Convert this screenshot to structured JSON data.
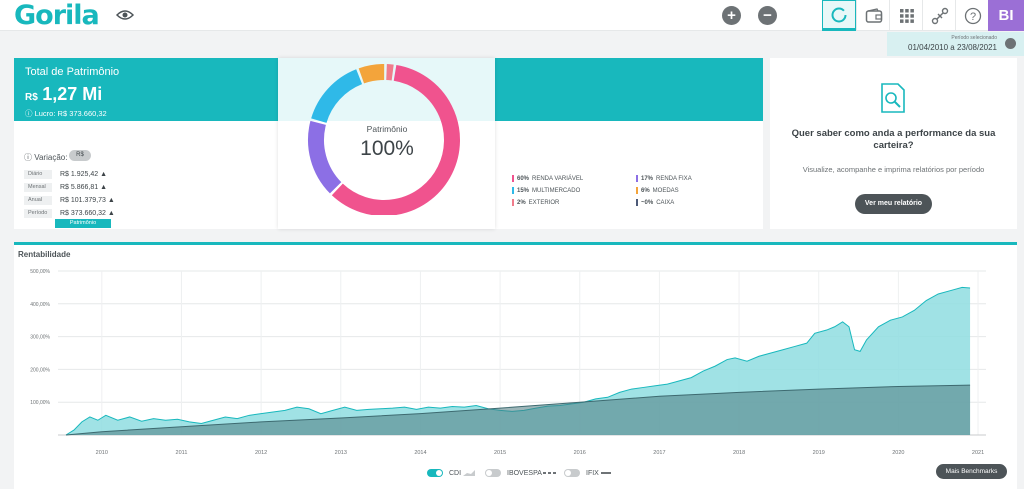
{
  "app": {
    "logo": "Gorila"
  },
  "topbar": {
    "add_label": "+",
    "remove_label": "−",
    "avatar_initials": "BI",
    "help_label": "?"
  },
  "period": {
    "label": "Período selecionado",
    "value": "01/04/2010 a 23/08/2021"
  },
  "patrimony": {
    "title": "Total de Patrimônio",
    "currency": "R$",
    "value": "1,27 Mi",
    "profit": "Lucro: R$ 373.660,32",
    "variation_label": "Variação:",
    "variation_toggle": "R$",
    "variations": [
      {
        "period": "Diário",
        "value": "R$ 1.925,42"
      },
      {
        "period": "Mensal",
        "value": "R$ 5.866,81"
      },
      {
        "period": "Anual",
        "value": "R$ 101.379,73"
      },
      {
        "period": "Período",
        "value": "R$ 373.660,32"
      }
    ],
    "variation_button": "Patrimônio",
    "donut_label": "Patrimônio",
    "donut_pct": "100%",
    "allocation": [
      {
        "pct": "60%",
        "label": "RENDA VARIÁVEL",
        "color": "#f0538e",
        "fraction": 0.6
      },
      {
        "pct": "17%",
        "label": "RENDA FIXA",
        "color": "#8c6fe5",
        "fraction": 0.17
      },
      {
        "pct": "15%",
        "label": "MULTIMERCADO",
        "color": "#2fb9e8",
        "fraction": 0.15
      },
      {
        "pct": "6%",
        "label": "MOEDAS",
        "color": "#f3a43b",
        "fraction": 0.06
      },
      {
        "pct": "2%",
        "label": "EXTERIOR",
        "color": "#f07c8c",
        "fraction": 0.02
      },
      {
        "pct": "~0%",
        "label": "CAIXA",
        "color": "#4d5a78",
        "fraction": 0.0
      }
    ]
  },
  "report": {
    "title": "Quer saber como anda a performance da sua carteira?",
    "subtitle": "Visualize, acompanhe e imprima relatórios por período",
    "button": "Ver meu relatório"
  },
  "chart": {
    "title": "Rentabilidade",
    "benchmark_button": "Mais Benchmarks",
    "toggles": [
      {
        "label": "CDI",
        "on": true
      },
      {
        "label": "IBOVESPA",
        "on": false
      },
      {
        "label": "IFIX",
        "on": false
      }
    ]
  },
  "chart_data": {
    "type": "area",
    "title": "Rentabilidade",
    "xlabel": "",
    "ylabel": "",
    "x_ticks": [
      "2010",
      "2011",
      "2012",
      "2013",
      "2014",
      "2015",
      "2016",
      "2017",
      "2018",
      "2019",
      "2020",
      "2021"
    ],
    "y_ticks": [
      "500,00%",
      "400,00%",
      "300,00%",
      "200,00%",
      "100,00%"
    ],
    "ylim": [
      0,
      500
    ],
    "xlim": [
      2009.45,
      2021.1
    ],
    "grid": true,
    "series": [
      {
        "name": "Patrimônio",
        "color": "#18b8bd",
        "points": [
          [
            2009.55,
            0
          ],
          [
            2009.65,
            15
          ],
          [
            2009.75,
            40
          ],
          [
            2009.85,
            55
          ],
          [
            2009.95,
            45
          ],
          [
            2010.05,
            60
          ],
          [
            2010.2,
            45
          ],
          [
            2010.35,
            55
          ],
          [
            2010.5,
            42
          ],
          [
            2010.65,
            50
          ],
          [
            2010.8,
            45
          ],
          [
            2010.95,
            48
          ],
          [
            2011.1,
            40
          ],
          [
            2011.25,
            35
          ],
          [
            2011.4,
            45
          ],
          [
            2011.55,
            55
          ],
          [
            2011.7,
            50
          ],
          [
            2011.85,
            60
          ],
          [
            2012.0,
            65
          ],
          [
            2012.15,
            70
          ],
          [
            2012.3,
            75
          ],
          [
            2012.45,
            85
          ],
          [
            2012.6,
            80
          ],
          [
            2012.75,
            65
          ],
          [
            2012.9,
            75
          ],
          [
            2013.05,
            85
          ],
          [
            2013.2,
            75
          ],
          [
            2013.35,
            78
          ],
          [
            2013.5,
            80
          ],
          [
            2013.65,
            82
          ],
          [
            2013.8,
            85
          ],
          [
            2013.95,
            78
          ],
          [
            2014.1,
            85
          ],
          [
            2014.25,
            82
          ],
          [
            2014.4,
            87
          ],
          [
            2014.55,
            85
          ],
          [
            2014.7,
            90
          ],
          [
            2014.85,
            80
          ],
          [
            2015.0,
            75
          ],
          [
            2015.15,
            72
          ],
          [
            2015.3,
            75
          ],
          [
            2015.45,
            82
          ],
          [
            2015.6,
            88
          ],
          [
            2015.75,
            90
          ],
          [
            2015.9,
            95
          ],
          [
            2016.05,
            100
          ],
          [
            2016.2,
            110
          ],
          [
            2016.35,
            115
          ],
          [
            2016.5,
            130
          ],
          [
            2016.65,
            140
          ],
          [
            2016.8,
            145
          ],
          [
            2016.95,
            150
          ],
          [
            2017.1,
            155
          ],
          [
            2017.25,
            165
          ],
          [
            2017.4,
            175
          ],
          [
            2017.55,
            195
          ],
          [
            2017.7,
            210
          ],
          [
            2017.85,
            230
          ],
          [
            2017.95,
            235
          ],
          [
            2018.1,
            225
          ],
          [
            2018.25,
            240
          ],
          [
            2018.4,
            250
          ],
          [
            2018.55,
            260
          ],
          [
            2018.7,
            270
          ],
          [
            2018.85,
            280
          ],
          [
            2018.95,
            310
          ],
          [
            2019.1,
            320
          ],
          [
            2019.2,
            330
          ],
          [
            2019.3,
            345
          ],
          [
            2019.38,
            330
          ],
          [
            2019.45,
            260
          ],
          [
            2019.52,
            255
          ],
          [
            2019.6,
            290
          ],
          [
            2019.75,
            330
          ],
          [
            2019.9,
            350
          ],
          [
            2020.05,
            360
          ],
          [
            2020.2,
            380
          ],
          [
            2020.35,
            410
          ],
          [
            2020.5,
            430
          ],
          [
            2020.65,
            440
          ],
          [
            2020.8,
            450
          ],
          [
            2020.9,
            448
          ]
        ]
      },
      {
        "name": "CDI",
        "color": "#4d7a80",
        "points": [
          [
            2009.55,
            0
          ],
          [
            2010.0,
            10
          ],
          [
            2011.0,
            25
          ],
          [
            2012.0,
            40
          ],
          [
            2013.0,
            52
          ],
          [
            2014.0,
            65
          ],
          [
            2015.0,
            82
          ],
          [
            2016.0,
            100
          ],
          [
            2017.0,
            118
          ],
          [
            2018.0,
            130
          ],
          [
            2019.0,
            140
          ],
          [
            2020.0,
            148
          ],
          [
            2020.9,
            152
          ]
        ]
      }
    ]
  }
}
